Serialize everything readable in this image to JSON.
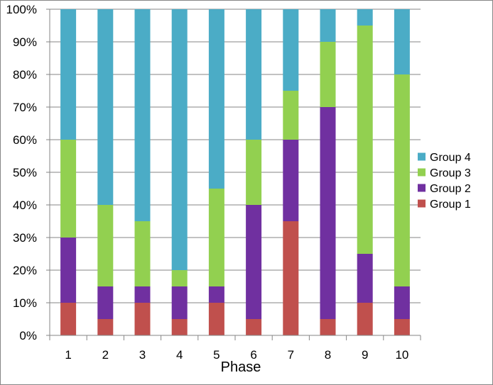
{
  "chart_data": {
    "type": "bar",
    "stacked": true,
    "percent": true,
    "title": "",
    "xlabel": "Phase",
    "ylabel": "",
    "ylim": [
      0,
      100
    ],
    "y_ticks": [
      "0%",
      "10%",
      "20%",
      "30%",
      "40%",
      "50%",
      "60%",
      "70%",
      "80%",
      "90%",
      "100%"
    ],
    "grid": true,
    "legend_position": "right",
    "categories": [
      "1",
      "2",
      "3",
      "4",
      "5",
      "6",
      "7",
      "8",
      "9",
      "10"
    ],
    "series": [
      {
        "name": "Group 1",
        "color": "#c0504d",
        "values": [
          10,
          5,
          10,
          5,
          10,
          5,
          35,
          5,
          10,
          5
        ]
      },
      {
        "name": "Group 2",
        "color": "#7030a0",
        "values": [
          20,
          10,
          5,
          10,
          5,
          35,
          25,
          65,
          15,
          10
        ]
      },
      {
        "name": "Group 3",
        "color": "#92d050",
        "values": [
          30,
          25,
          20,
          5,
          30,
          20,
          15,
          20,
          70,
          65
        ]
      },
      {
        "name": "Group 4",
        "color": "#4bacc6",
        "values": [
          40,
          60,
          65,
          80,
          55,
          40,
          25,
          10,
          5,
          20
        ]
      }
    ],
    "legend_order": [
      "Group 4",
      "Group 3",
      "Group 2",
      "Group 1"
    ]
  }
}
